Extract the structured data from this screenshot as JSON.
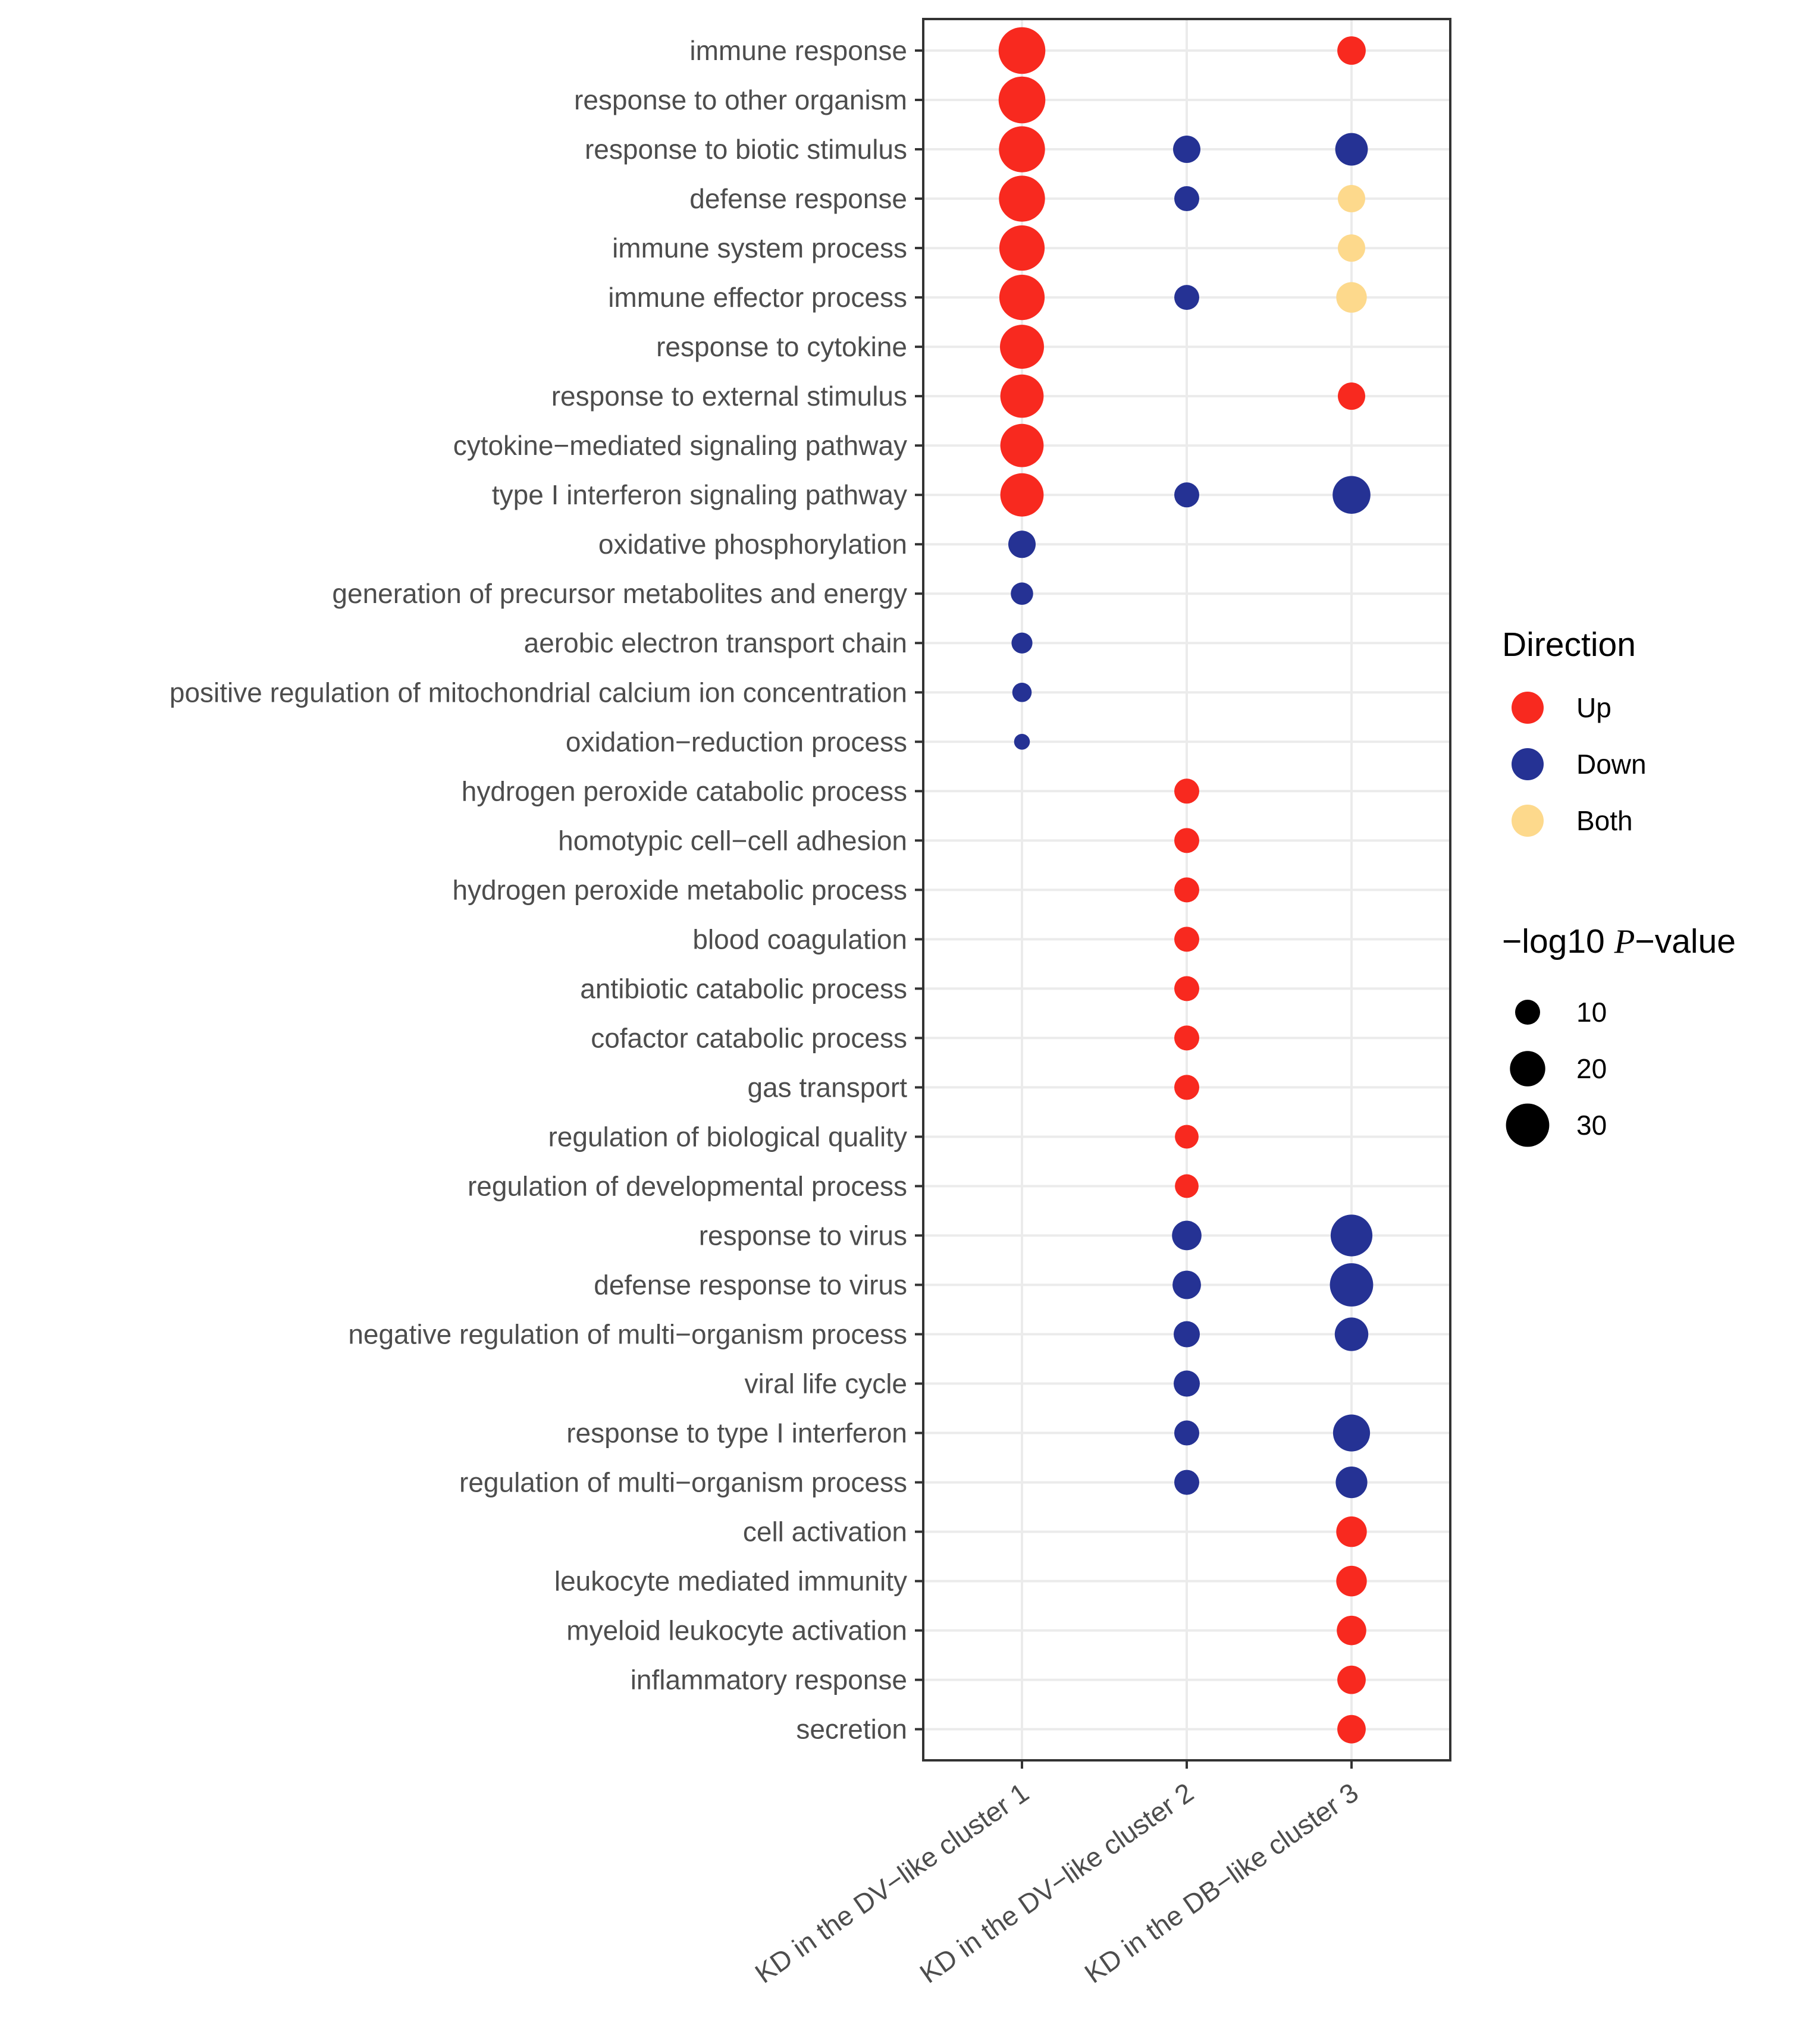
{
  "chart_data": {
    "type": "scatter",
    "x_categories": [
      "KD in the DV−like cluster 1",
      "KD in the DV−like cluster 2",
      "KD in the DB−like cluster 3"
    ],
    "y_categories": [
      "immune response",
      "response to other organism",
      "response to biotic stimulus",
      "defense response",
      "immune system process",
      "immune effector process",
      "response to cytokine",
      "response to external stimulus",
      "cytokine−mediated signaling pathway",
      "type I interferon signaling pathway",
      "oxidative phosphorylation",
      "generation of precursor metabolites and energy",
      "aerobic electron transport chain",
      "positive regulation of mitochondrial calcium ion concentration",
      "oxidation−reduction process",
      "hydrogen peroxide catabolic process",
      "homotypic cell−cell adhesion",
      "hydrogen peroxide metabolic process",
      "blood coagulation",
      "antibiotic catabolic process",
      "cofactor catabolic process",
      "gas transport",
      "regulation of biological quality",
      "regulation of developmental process",
      "response to virus",
      "defense response to virus",
      "negative regulation of multi−organism process",
      "viral life cycle",
      "response to type I interferon",
      "regulation of multi−organism process",
      "cell activation",
      "leukocyte mediated immunity",
      "myeloid leukocyte activation",
      "inflammatory response",
      "secretion"
    ],
    "points": [
      {
        "x": 0,
        "y": 0,
        "direction": "Up",
        "neglog10p": 35
      },
      {
        "x": 0,
        "y": 1,
        "direction": "Up",
        "neglog10p": 35
      },
      {
        "x": 0,
        "y": 2,
        "direction": "Up",
        "neglog10p": 34
      },
      {
        "x": 0,
        "y": 3,
        "direction": "Up",
        "neglog10p": 34
      },
      {
        "x": 0,
        "y": 4,
        "direction": "Up",
        "neglog10p": 33
      },
      {
        "x": 0,
        "y": 5,
        "direction": "Up",
        "neglog10p": 33
      },
      {
        "x": 0,
        "y": 6,
        "direction": "Up",
        "neglog10p": 31
      },
      {
        "x": 0,
        "y": 7,
        "direction": "Up",
        "neglog10p": 30
      },
      {
        "x": 0,
        "y": 8,
        "direction": "Up",
        "neglog10p": 30
      },
      {
        "x": 0,
        "y": 9,
        "direction": "Up",
        "neglog10p": 30
      },
      {
        "x": 0,
        "y": 10,
        "direction": "Down",
        "neglog10p": 12
      },
      {
        "x": 0,
        "y": 11,
        "direction": "Down",
        "neglog10p": 8
      },
      {
        "x": 0,
        "y": 12,
        "direction": "Down",
        "neglog10p": 7
      },
      {
        "x": 0,
        "y": 13,
        "direction": "Down",
        "neglog10p": 6
      },
      {
        "x": 0,
        "y": 14,
        "direction": "Down",
        "neglog10p": 4
      },
      {
        "x": 1,
        "y": 2,
        "direction": "Down",
        "neglog10p": 12
      },
      {
        "x": 1,
        "y": 3,
        "direction": "Down",
        "neglog10p": 10
      },
      {
        "x": 1,
        "y": 5,
        "direction": "Down",
        "neglog10p": 10
      },
      {
        "x": 1,
        "y": 9,
        "direction": "Down",
        "neglog10p": 10
      },
      {
        "x": 1,
        "y": 15,
        "direction": "Up",
        "neglog10p": 10
      },
      {
        "x": 1,
        "y": 16,
        "direction": "Up",
        "neglog10p": 10
      },
      {
        "x": 1,
        "y": 17,
        "direction": "Up",
        "neglog10p": 10
      },
      {
        "x": 1,
        "y": 18,
        "direction": "Up",
        "neglog10p": 10
      },
      {
        "x": 1,
        "y": 19,
        "direction": "Up",
        "neglog10p": 10
      },
      {
        "x": 1,
        "y": 20,
        "direction": "Up",
        "neglog10p": 10
      },
      {
        "x": 1,
        "y": 21,
        "direction": "Up",
        "neglog10p": 10
      },
      {
        "x": 1,
        "y": 22,
        "direction": "Up",
        "neglog10p": 9
      },
      {
        "x": 1,
        "y": 23,
        "direction": "Up",
        "neglog10p": 9
      },
      {
        "x": 1,
        "y": 24,
        "direction": "Down",
        "neglog10p": 14
      },
      {
        "x": 1,
        "y": 25,
        "direction": "Down",
        "neglog10p": 13
      },
      {
        "x": 1,
        "y": 26,
        "direction": "Down",
        "neglog10p": 11
      },
      {
        "x": 1,
        "y": 27,
        "direction": "Down",
        "neglog10p": 11
      },
      {
        "x": 1,
        "y": 28,
        "direction": "Down",
        "neglog10p": 10
      },
      {
        "x": 1,
        "y": 29,
        "direction": "Down",
        "neglog10p": 10
      },
      {
        "x": 2,
        "y": 0,
        "direction": "Up",
        "neglog10p": 13
      },
      {
        "x": 2,
        "y": 2,
        "direction": "Down",
        "neglog10p": 17
      },
      {
        "x": 2,
        "y": 3,
        "direction": "Both",
        "neglog10p": 12
      },
      {
        "x": 2,
        "y": 4,
        "direction": "Both",
        "neglog10p": 12
      },
      {
        "x": 2,
        "y": 5,
        "direction": "Both",
        "neglog10p": 15
      },
      {
        "x": 2,
        "y": 7,
        "direction": "Up",
        "neglog10p": 12
      },
      {
        "x": 2,
        "y": 9,
        "direction": "Down",
        "neglog10p": 23
      },
      {
        "x": 2,
        "y": 24,
        "direction": "Down",
        "neglog10p": 28
      },
      {
        "x": 2,
        "y": 25,
        "direction": "Down",
        "neglog10p": 30
      },
      {
        "x": 2,
        "y": 26,
        "direction": "Down",
        "neglog10p": 18
      },
      {
        "x": 2,
        "y": 28,
        "direction": "Down",
        "neglog10p": 22
      },
      {
        "x": 2,
        "y": 29,
        "direction": "Down",
        "neglog10p": 16
      },
      {
        "x": 2,
        "y": 30,
        "direction": "Up",
        "neglog10p": 15
      },
      {
        "x": 2,
        "y": 31,
        "direction": "Up",
        "neglog10p": 15
      },
      {
        "x": 2,
        "y": 32,
        "direction": "Up",
        "neglog10p": 14
      },
      {
        "x": 2,
        "y": 33,
        "direction": "Up",
        "neglog10p": 13
      },
      {
        "x": 2,
        "y": 34,
        "direction": "Up",
        "neglog10p": 13
      }
    ],
    "xlabel": "",
    "ylabel": "",
    "grid": true,
    "legend": {
      "color_title": "Direction",
      "color_entries": [
        {
          "label": "Up",
          "color": "#f8291f"
        },
        {
          "label": "Down",
          "color": "#253294"
        },
        {
          "label": "Both",
          "color": "#fdd98c"
        }
      ],
      "size_title_pre": "−log10 ",
      "size_title_italic": "P",
      "size_title_post": "−value",
      "size_entries": [
        10,
        20,
        30
      ],
      "placement": "right"
    }
  }
}
